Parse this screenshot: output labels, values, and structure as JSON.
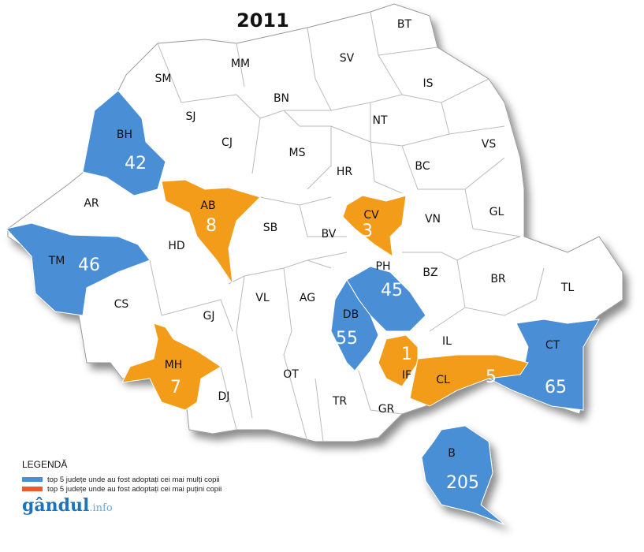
{
  "title": "2011",
  "colors": {
    "top": "#4a8fd6",
    "bottom": "#f39c1a",
    "legend_bottom": "#ef5a2a",
    "other": "#ffffff"
  },
  "counties": [
    {
      "code": "BT"
    },
    {
      "code": "SV"
    },
    {
      "code": "MM"
    },
    {
      "code": "SM"
    },
    {
      "code": "IS"
    },
    {
      "code": "BN"
    },
    {
      "code": "SJ"
    },
    {
      "code": "NT"
    },
    {
      "code": "CJ"
    },
    {
      "code": "VS"
    },
    {
      "code": "MS"
    },
    {
      "code": "HR"
    },
    {
      "code": "BC"
    },
    {
      "code": "BH",
      "value": "42",
      "group": "top"
    },
    {
      "code": "AR"
    },
    {
      "code": "AB",
      "value": "8",
      "group": "bottom"
    },
    {
      "code": "CV",
      "value": "3",
      "group": "bottom"
    },
    {
      "code": "VN"
    },
    {
      "code": "GL"
    },
    {
      "code": "SB"
    },
    {
      "code": "BV"
    },
    {
      "code": "HD"
    },
    {
      "code": "TM",
      "value": "46",
      "group": "top"
    },
    {
      "code": "BZ"
    },
    {
      "code": "PH",
      "value": "45",
      "group": "top"
    },
    {
      "code": "BR"
    },
    {
      "code": "TL"
    },
    {
      "code": "CS"
    },
    {
      "code": "VL"
    },
    {
      "code": "AG"
    },
    {
      "code": "DB",
      "value": "55",
      "group": "top"
    },
    {
      "code": "GJ"
    },
    {
      "code": "IL"
    },
    {
      "code": "CT",
      "value": "65",
      "group": "top"
    },
    {
      "code": "IF",
      "value": "1",
      "group": "bottom"
    },
    {
      "code": "CL",
      "value": "5",
      "group": "bottom"
    },
    {
      "code": "MH",
      "value": "7",
      "group": "bottom"
    },
    {
      "code": "OT"
    },
    {
      "code": "DJ"
    },
    {
      "code": "TR"
    },
    {
      "code": "GR"
    },
    {
      "code": "B",
      "value": "205",
      "group": "top"
    }
  ],
  "legend": {
    "title": "LEGENDĂ",
    "items": [
      {
        "label": "top 5 județe unde au fost adoptați cei mai mulți copii",
        "color": "#4a8fd6"
      },
      {
        "label": "top 5 județe unde au fost adoptați  cei mai puțini copii",
        "color": "#ef5a2a"
      }
    ]
  },
  "logo": {
    "main": "gândul",
    "suffix": ".info"
  }
}
